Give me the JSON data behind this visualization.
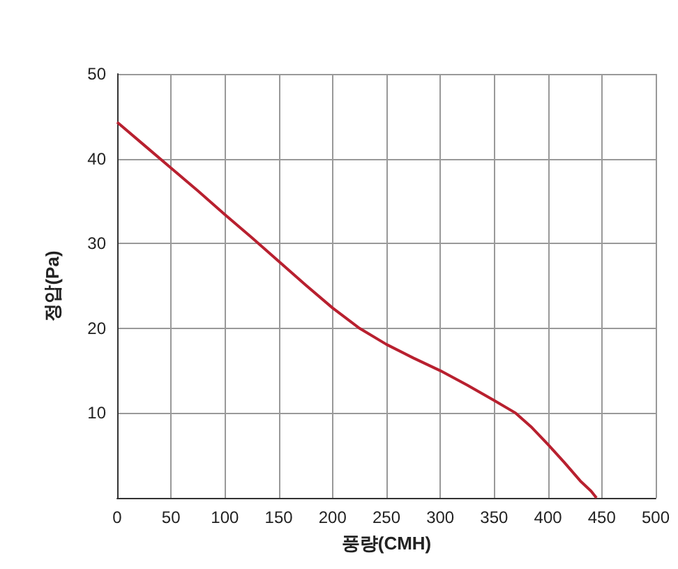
{
  "chart_data": {
    "type": "line",
    "xlabel": "풍량(CMH)",
    "ylabel": "정압(Pa)",
    "x": [
      0,
      25,
      50,
      75,
      100,
      125,
      150,
      175,
      200,
      225,
      250,
      275,
      300,
      325,
      350,
      370,
      385,
      400,
      415,
      430,
      440,
      445
    ],
    "series": [
      {
        "color": "#b8202f",
        "values": [
          44.3,
          41.6,
          38.9,
          36.2,
          33.4,
          30.7,
          27.9,
          25.1,
          22.4,
          20.0,
          18.1,
          16.5,
          15.0,
          13.3,
          11.5,
          10.0,
          8.3,
          6.3,
          4.2,
          2.0,
          0.8,
          0
        ]
      }
    ],
    "xlim": [
      0,
      500
    ],
    "xticks": [
      0,
      50,
      100,
      150,
      200,
      250,
      300,
      350,
      400,
      450,
      500
    ],
    "ylim": [
      0,
      50
    ],
    "yticks": [
      10,
      20,
      30,
      40,
      50
    ],
    "grid": true,
    "marker": "none",
    "line_style": "solid"
  }
}
